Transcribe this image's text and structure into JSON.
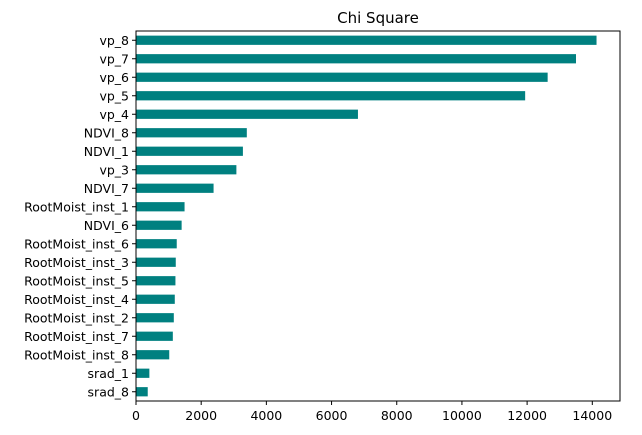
{
  "chart_data": {
    "type": "bar",
    "orientation": "horizontal",
    "title": "Chi Square",
    "xlabel": "",
    "ylabel": "",
    "bar_color": "#008080",
    "xlim": [
      0,
      14850
    ],
    "xticks": [
      0,
      2000,
      4000,
      6000,
      8000,
      10000,
      12000,
      14000
    ],
    "grid": false,
    "categories": [
      "vp_8",
      "vp_7",
      "vp_6",
      "vp_5",
      "vp_4",
      "NDVI_8",
      "NDVI_1",
      "vp_3",
      "NDVI_7",
      "RootMoist_inst_1",
      "NDVI_6",
      "RootMoist_inst_6",
      "RootMoist_inst_3",
      "RootMoist_inst_5",
      "RootMoist_inst_4",
      "RootMoist_inst_2",
      "RootMoist_inst_7",
      "RootMoist_inst_8",
      "srad_1",
      "srad_8"
    ],
    "values": [
      14130,
      13500,
      12630,
      11940,
      6810,
      3400,
      3280,
      3080,
      2380,
      1490,
      1400,
      1250,
      1220,
      1210,
      1190,
      1160,
      1130,
      1020,
      410,
      360
    ]
  }
}
